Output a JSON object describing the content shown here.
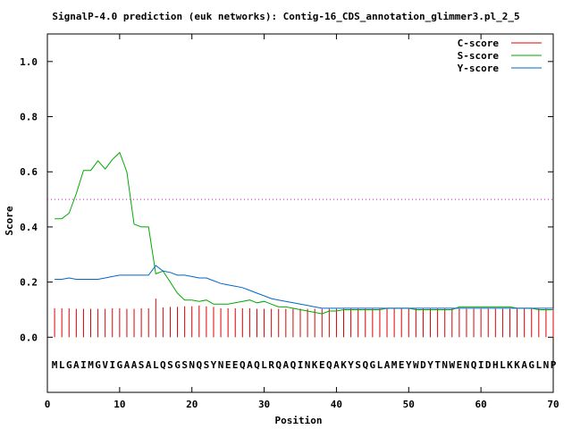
{
  "chart_data": {
    "type": "line",
    "title": "SignalP-4.0 prediction (euk networks): Contig-16_CDS_annotation_glimmer3.pl_2_5",
    "xlabel": "Position",
    "ylabel": "Score",
    "xlim": [
      0,
      70
    ],
    "ylim": [
      -0.2,
      1.1
    ],
    "x_ticks": [
      "0",
      "10",
      "20",
      "30",
      "40",
      "50",
      "60",
      "70"
    ],
    "y_ticks": [
      "0.0",
      "0.2",
      "0.4",
      "0.6",
      "0.8",
      "1.0"
    ],
    "grid": false,
    "legend_position": "top-right",
    "threshold": 0.5,
    "sequence": "MLGAIMGVIGAASALQSGSNQSYNEEQAQLRQAQINKEQAKYSQGLAMEYWDYTNWENQIDHLKKAGLNP",
    "series": [
      {
        "name": "C-score",
        "color": "#dd0000",
        "style": "impulses",
        "values": [
          0.105,
          0.105,
          0.105,
          0.103,
          0.103,
          0.103,
          0.103,
          0.103,
          0.105,
          0.105,
          0.103,
          0.103,
          0.105,
          0.105,
          0.14,
          0.108,
          0.11,
          0.11,
          0.112,
          0.112,
          0.115,
          0.112,
          0.11,
          0.105,
          0.105,
          0.105,
          0.105,
          0.105,
          0.103,
          0.103,
          0.103,
          0.103,
          0.103,
          0.103,
          0.103,
          0.103,
          0.103,
          0.103,
          0.103,
          0.103,
          0.103,
          0.103,
          0.103,
          0.103,
          0.103,
          0.103,
          0.103,
          0.103,
          0.103,
          0.103,
          0.103,
          0.103,
          0.103,
          0.103,
          0.103,
          0.103,
          0.103,
          0.103,
          0.103,
          0.103,
          0.103,
          0.103,
          0.103,
          0.103,
          0.103,
          0.103,
          0.103,
          0.103,
          0.103,
          0.103
        ]
      },
      {
        "name": "S-score",
        "color": "#00aa00",
        "style": "line",
        "values": [
          0.43,
          0.43,
          0.45,
          0.52,
          0.605,
          0.605,
          0.64,
          0.61,
          0.645,
          0.67,
          0.6,
          0.41,
          0.4,
          0.4,
          0.23,
          0.24,
          0.2,
          0.16,
          0.135,
          0.135,
          0.13,
          0.135,
          0.12,
          0.12,
          0.12,
          0.125,
          0.13,
          0.135,
          0.125,
          0.13,
          0.12,
          0.11,
          0.11,
          0.105,
          0.1,
          0.095,
          0.09,
          0.085,
          0.095,
          0.095,
          0.1,
          0.1,
          0.1,
          0.1,
          0.1,
          0.1,
          0.105,
          0.105,
          0.105,
          0.105,
          0.1,
          0.1,
          0.1,
          0.1,
          0.1,
          0.1,
          0.11,
          0.11,
          0.11,
          0.11,
          0.11,
          0.11,
          0.11,
          0.11,
          0.105,
          0.105,
          0.105,
          0.1,
          0.1,
          0.1
        ]
      },
      {
        "name": "Y-score",
        "color": "#0066cc",
        "style": "line",
        "values": [
          0.21,
          0.21,
          0.215,
          0.21,
          0.21,
          0.21,
          0.21,
          0.215,
          0.22,
          0.225,
          0.225,
          0.225,
          0.225,
          0.225,
          0.26,
          0.24,
          0.235,
          0.225,
          0.225,
          0.22,
          0.215,
          0.215,
          0.205,
          0.195,
          0.19,
          0.185,
          0.18,
          0.17,
          0.16,
          0.15,
          0.14,
          0.135,
          0.13,
          0.125,
          0.12,
          0.115,
          0.11,
          0.105,
          0.105,
          0.105,
          0.105,
          0.105,
          0.105,
          0.105,
          0.105,
          0.105,
          0.105,
          0.105,
          0.105,
          0.105,
          0.105,
          0.105,
          0.105,
          0.105,
          0.105,
          0.105,
          0.105,
          0.105,
          0.105,
          0.105,
          0.105,
          0.105,
          0.105,
          0.105,
          0.105,
          0.105,
          0.105,
          0.105,
          0.105,
          0.105
        ]
      }
    ]
  },
  "legend": {
    "c_label": "C-score",
    "s_label": "S-score",
    "y_label": "Y-score"
  }
}
